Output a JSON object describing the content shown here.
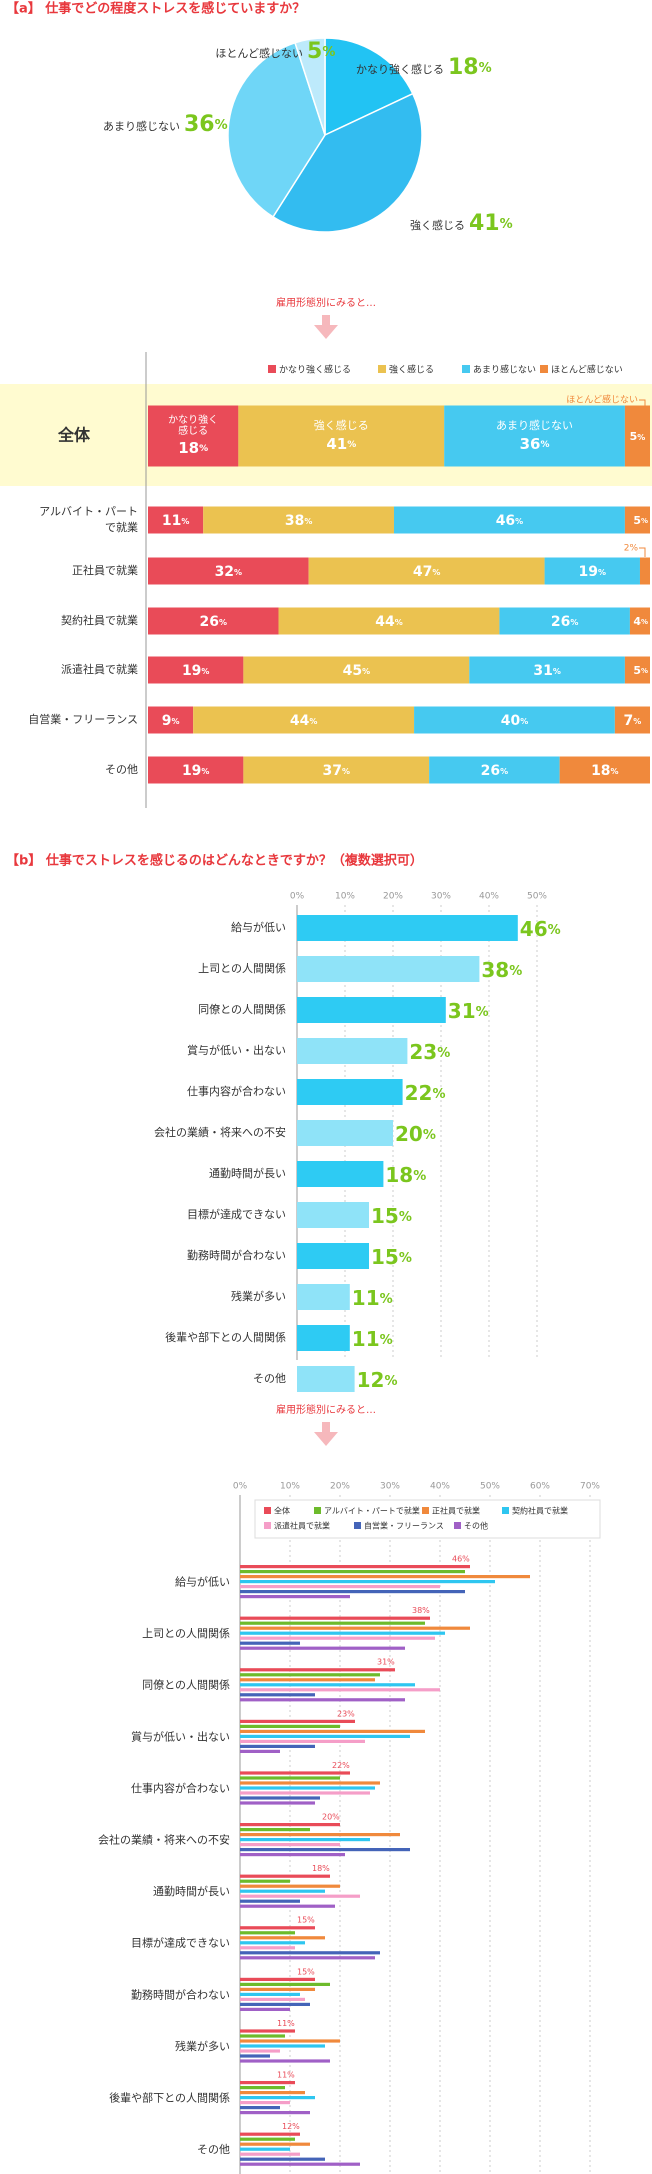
{
  "section_a": {
    "title": "【a】 仕事でどの程度ストレスを感じていますか？",
    "arrow_text": "雇用形態別にみると…"
  },
  "section_b": {
    "title": "【b】 仕事でストレスを感じるのはどんなときですか？（複数選択可）",
    "arrow_text": "雇用形態別にみると…"
  },
  "colors": {
    "very_strong": "#e94b58",
    "strong": "#ebc250",
    "not_much": "#46c9f0",
    "hardly": "#f0893c",
    "bar_dark": "#2ecbf3",
    "bar_light": "#8fe3f8",
    "value_green": "#7bc61e",
    "title_red": "#e8383d",
    "highlight": "#fffbd0",
    "pie_very": "#22c3f3",
    "pie_strong": "#33bcf0",
    "pie_notmuch": "#6fd6f7",
    "pie_hardly": "#bdeafb"
  },
  "chart_data": [
    {
      "type": "pie",
      "labels": [
        "かなり強く感じる",
        "強く感じる",
        "あまり感じない",
        "ほとんど感じない"
      ],
      "values": [
        18,
        41,
        36,
        5
      ],
      "value_labels": [
        "18%",
        "41%",
        "36%",
        "5%"
      ]
    },
    {
      "type": "bar",
      "orientation": "horizontal",
      "stacked": true,
      "legend_position": "top-right",
      "categories": [
        "全体",
        "アルバイト・パート で就業",
        "正社員で就業",
        "契約社員で就業",
        "派遣社員で就業",
        "自営業・フリーランス",
        "その他"
      ],
      "category_lines": [
        [
          "全体"
        ],
        [
          "アルバイト・パート",
          "で就業"
        ],
        [
          "正社員で就業"
        ],
        [
          "契約社員で就業"
        ],
        [
          "派遣社員で就業"
        ],
        [
          "自営業・フリーランス"
        ],
        [
          "その他"
        ]
      ],
      "series": [
        {
          "name": "かなり強く感じる",
          "values": [
            18,
            11,
            32,
            26,
            19,
            9,
            19
          ]
        },
        {
          "name": "強く感じる",
          "values": [
            41,
            38,
            47,
            44,
            45,
            44,
            37
          ]
        },
        {
          "name": "あまり感じない",
          "values": [
            36,
            46,
            19,
            26,
            31,
            40,
            26
          ]
        },
        {
          "name": "ほとんど感じない",
          "values": [
            5,
            5,
            2,
            4,
            5,
            7,
            18
          ]
        }
      ],
      "overall_segment_labels": [
        [
          "かなり強く",
          "感じる"
        ],
        [
          "強く感じる"
        ],
        [
          "あまり感じない"
        ],
        []
      ],
      "annotations": [
        "ほとんど感じない",
        "2%"
      ]
    },
    {
      "type": "bar",
      "orientation": "horizontal",
      "xlim": [
        0,
        50
      ],
      "xticks": [
        "0%",
        "10%",
        "20%",
        "30%",
        "40%",
        "50%"
      ],
      "categories": [
        "給与が低い",
        "上司との人間関係",
        "同僚との人間関係",
        "賞与が低い・出ない",
        "仕事内容が合わない",
        "会社の業績・将来への不安",
        "通勤時間が長い",
        "目標が達成できない",
        "勤務時間が合わない",
        "残業が多い",
        "後輩や部下との人間関係",
        "その他"
      ],
      "values": [
        46,
        38,
        31,
        23,
        22,
        20,
        18,
        15,
        15,
        11,
        11,
        12
      ],
      "value_labels": [
        "46%",
        "38%",
        "31%",
        "23%",
        "22%",
        "20%",
        "18%",
        "15%",
        "15%",
        "11%",
        "11%",
        "12%"
      ]
    },
    {
      "type": "bar",
      "orientation": "horizontal",
      "grouped": true,
      "legend_position": "top",
      "xlim": [
        0,
        70
      ],
      "xticks": [
        "0%",
        "10%",
        "20%",
        "30%",
        "40%",
        "50%",
        "60%",
        "70%"
      ],
      "categories": [
        "給与が低い",
        "上司との人間関係",
        "同僚との人間関係",
        "賞与が低い・出ない",
        "仕事内容が合わない",
        "会社の業績・将来への不安",
        "通勤時間が長い",
        "目標が達成できない",
        "勤務時間が合わない",
        "残業が多い",
        "後輩や部下との人間関係",
        "その他"
      ],
      "series": [
        {
          "name": "全体",
          "color": "#e94b58",
          "values": [
            46,
            38,
            31,
            23,
            22,
            20,
            18,
            15,
            15,
            11,
            11,
            12
          ]
        },
        {
          "name": "アルバイト・パートで就業",
          "color": "#6dbb2b",
          "values": [
            45,
            37,
            28,
            20,
            20,
            14,
            10,
            11,
            18,
            9,
            9,
            11
          ]
        },
        {
          "name": "正社員で就業",
          "color": "#f0893c",
          "values": [
            58,
            46,
            27,
            37,
            28,
            32,
            20,
            17,
            15,
            20,
            13,
            14
          ]
        },
        {
          "name": "契約社員で就業",
          "color": "#2ec6f0",
          "values": [
            51,
            41,
            35,
            34,
            27,
            26,
            17,
            13,
            12,
            17,
            15,
            10
          ]
        },
        {
          "name": "派遣社員で就業",
          "color": "#f59ec8",
          "values": [
            40,
            39,
            40,
            25,
            26,
            20,
            24,
            11,
            13,
            8,
            10,
            12
          ]
        },
        {
          "name": "自営業・フリーランス",
          "color": "#4464b8",
          "values": [
            45,
            12,
            15,
            15,
            16,
            34,
            12,
            28,
            14,
            6,
            8,
            17
          ]
        },
        {
          "name": "その他",
          "color": "#a060c6",
          "values": [
            22,
            33,
            33,
            8,
            15,
            21,
            19,
            27,
            10,
            18,
            14,
            24
          ]
        }
      ],
      "value_labels": [
        "46%",
        "38%",
        "31%",
        "23%",
        "22%",
        "20%",
        "18%",
        "15%",
        "15%",
        "11%",
        "11%",
        "12%"
      ]
    }
  ]
}
